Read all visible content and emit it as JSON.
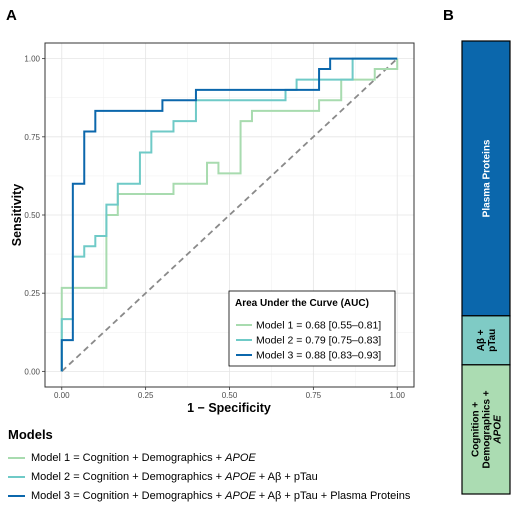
{
  "panels": {
    "a": "A",
    "b": "B"
  },
  "chart_data": [
    {
      "type": "line",
      "xlabel": "1 − Specificity",
      "ylabel": "Sensitivity",
      "xlim": [
        -0.05,
        1.05
      ],
      "ylim": [
        -0.05,
        1.05
      ],
      "x_ticks": [
        0,
        0.25,
        0.5,
        0.75,
        1
      ],
      "x_tick_labels": [
        "0.00",
        "0.25",
        "0.50",
        "0.75",
        "1.00"
      ],
      "y_ticks": [
        0,
        0.25,
        0.5,
        0.75,
        1
      ],
      "y_tick_labels": [
        "0.00",
        "0.25",
        "0.50",
        "0.75",
        "1.00"
      ],
      "grid": true,
      "reference_line": {
        "from": [
          0,
          0
        ],
        "to": [
          1,
          1
        ],
        "style": "dashed",
        "color": "#8a8a8a"
      },
      "legend": {
        "title": "Area Under the Curve (AUC)",
        "placement": "bottom-right",
        "entries": [
          "Model 1 = 0.68 [0.55–0.81]",
          "Model 2 = 0.79 [0.75–0.83]",
          "Model 3 = 0.88 [0.83–0.93]"
        ]
      },
      "series": [
        {
          "color": "#a8dbaf",
          "points": [
            [
              0,
              0
            ],
            [
              0,
              0.267
            ],
            [
              0.133,
              0.267
            ],
            [
              0.133,
              0.5
            ],
            [
              0.167,
              0.5
            ],
            [
              0.167,
              0.567
            ],
            [
              0.333,
              0.567
            ],
            [
              0.333,
              0.6
            ],
            [
              0.433,
              0.6
            ],
            [
              0.433,
              0.667
            ],
            [
              0.467,
              0.667
            ],
            [
              0.467,
              0.633
            ],
            [
              0.533,
              0.633
            ],
            [
              0.533,
              0.8
            ],
            [
              0.567,
              0.8
            ],
            [
              0.567,
              0.833
            ],
            [
              0.767,
              0.833
            ],
            [
              0.767,
              0.867
            ],
            [
              0.833,
              0.867
            ],
            [
              0.833,
              0.933
            ],
            [
              0.933,
              0.933
            ],
            [
              0.933,
              0.967
            ],
            [
              1,
              0.967
            ],
            [
              1,
              1
            ]
          ]
        },
        {
          "color": "#6fcac7",
          "points": [
            [
              0,
              0
            ],
            [
              0,
              0.167
            ],
            [
              0.033,
              0.167
            ],
            [
              0.033,
              0.367
            ],
            [
              0.067,
              0.367
            ],
            [
              0.067,
              0.4
            ],
            [
              0.1,
              0.4
            ],
            [
              0.1,
              0.433
            ],
            [
              0.133,
              0.433
            ],
            [
              0.133,
              0.533
            ],
            [
              0.167,
              0.533
            ],
            [
              0.167,
              0.6
            ],
            [
              0.233,
              0.6
            ],
            [
              0.233,
              0.7
            ],
            [
              0.267,
              0.7
            ],
            [
              0.267,
              0.767
            ],
            [
              0.333,
              0.767
            ],
            [
              0.333,
              0.8
            ],
            [
              0.4,
              0.8
            ],
            [
              0.4,
              0.867
            ],
            [
              0.667,
              0.867
            ],
            [
              0.667,
              0.9
            ],
            [
              0.7,
              0.9
            ],
            [
              0.7,
              0.933
            ],
            [
              0.867,
              0.933
            ],
            [
              0.867,
              1
            ],
            [
              1,
              1
            ]
          ]
        },
        {
          "color": "#0b67ac",
          "points": [
            [
              0,
              0
            ],
            [
              0,
              0.1
            ],
            [
              0.033,
              0.1
            ],
            [
              0.033,
              0.6
            ],
            [
              0.067,
              0.6
            ],
            [
              0.067,
              0.767
            ],
            [
              0.1,
              0.767
            ],
            [
              0.1,
              0.833
            ],
            [
              0.3,
              0.833
            ],
            [
              0.3,
              0.867
            ],
            [
              0.4,
              0.867
            ],
            [
              0.4,
              0.9
            ],
            [
              0.767,
              0.9
            ],
            [
              0.767,
              0.967
            ],
            [
              0.8,
              0.967
            ],
            [
              0.8,
              1
            ],
            [
              1,
              1
            ]
          ]
        }
      ]
    },
    {
      "type": "bar",
      "orientation": "vertical-stacked",
      "segments": [
        {
          "label": "Plasma Proteins",
          "value": 0.6,
          "color": "#0b67ac",
          "text_color": "#ffffff"
        },
        {
          "label": "Aβ + pTau",
          "value": 0.107,
          "color": "#7fcbc5",
          "text_color": "#000000"
        },
        {
          "label": "Cognition + Demographics + APOE",
          "value": 0.282,
          "color": "#abdcb2",
          "text_color": "#000000"
        }
      ]
    }
  ],
  "models_legend": {
    "title": "Models",
    "items": [
      {
        "color": "#a8dbaf",
        "prefix": "Model 1 = Cognition + Demographics + ",
        "italic": "APOE",
        "suffix": ""
      },
      {
        "color": "#6fcac7",
        "prefix": "Model 2 = Cognition + Demographics + ",
        "italic": "APOE",
        "suffix": " + Aβ + pTau"
      },
      {
        "color": "#0b67ac",
        "prefix": "Model 3 = Cognition + Demographics + ",
        "italic": "APOE",
        "suffix": " + Aβ + pTau + Plasma Proteins"
      }
    ]
  }
}
